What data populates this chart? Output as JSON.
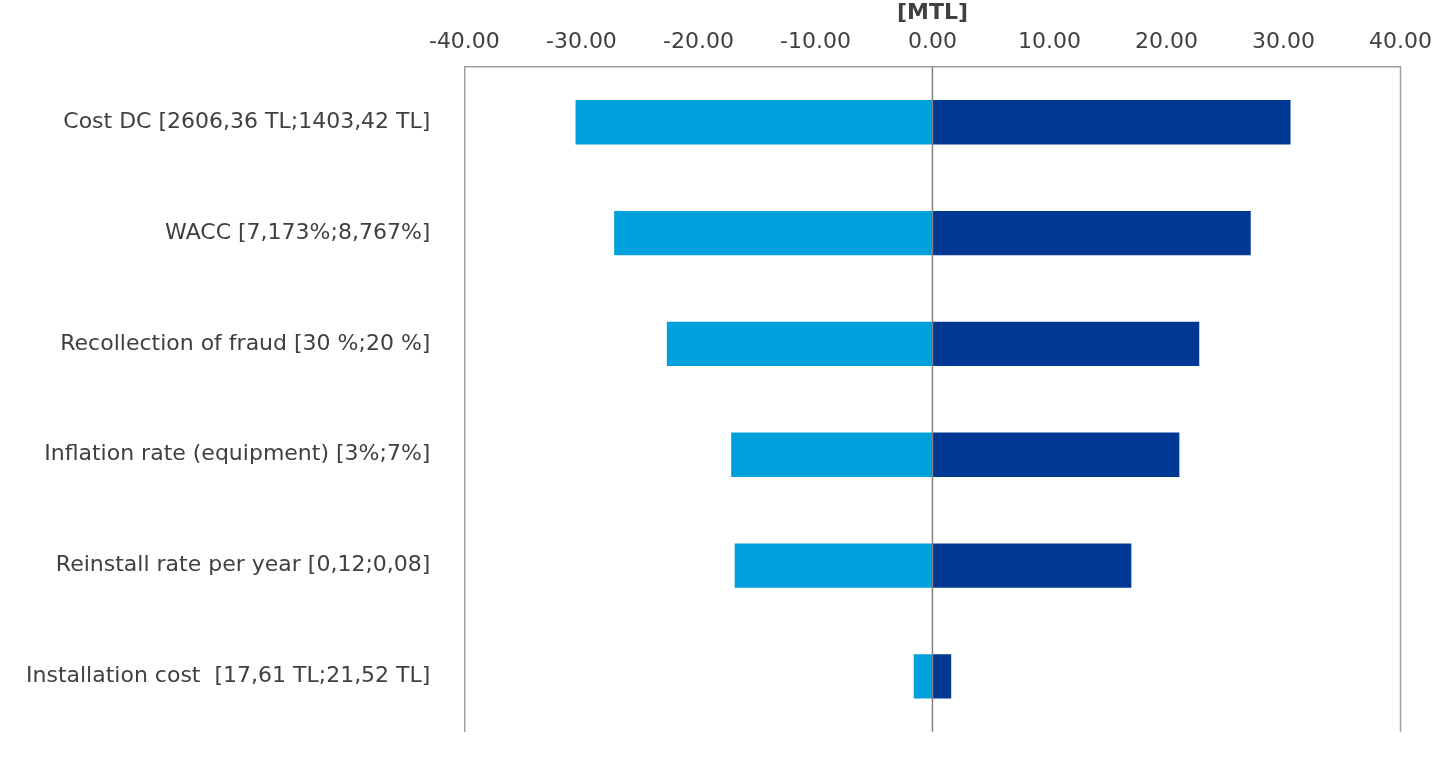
{
  "chart_data": {
    "type": "bar",
    "orientation": "horizontal",
    "stacked": true,
    "xlabel": "[MTL]",
    "categories": [
      "Cost DC [2606,36 TL;1403,42 TL]",
      "WACC [7,173%;8,767%]",
      "Recollection of fraud [30 %;20 %]",
      "Inflation rate (equipment) [3%;7%]",
      "Reinstall rate per year [0,12;0,08]",
      "Installation cost  [17,61 TL;21,52 TL]"
    ],
    "series": [
      {
        "color": "#00a0dc",
        "values": [
          -30.5,
          -27.2,
          -22.7,
          -17.2,
          -16.9,
          -1.6
        ]
      },
      {
        "color": "#003893",
        "values": [
          30.6,
          27.2,
          22.8,
          21.1,
          17.0,
          1.6
        ]
      }
    ],
    "xlim": [
      -40,
      40
    ],
    "xticks": [
      {
        "value": -40,
        "label": "-40.00"
      },
      {
        "value": -30,
        "label": "-30.00"
      },
      {
        "value": -20,
        "label": "-20.00"
      },
      {
        "value": -10,
        "label": "-10.00"
      },
      {
        "value": 0,
        "label": "0.00"
      },
      {
        "value": 10,
        "label": "10.00"
      },
      {
        "value": 20,
        "label": "20.00"
      },
      {
        "value": 30,
        "label": "30.00"
      },
      {
        "value": 40,
        "label": "40.00"
      }
    ],
    "ref_lines": [
      {
        "axis": "x",
        "value": 0,
        "color": "#808080"
      }
    ],
    "grid": false,
    "legend": false
  }
}
